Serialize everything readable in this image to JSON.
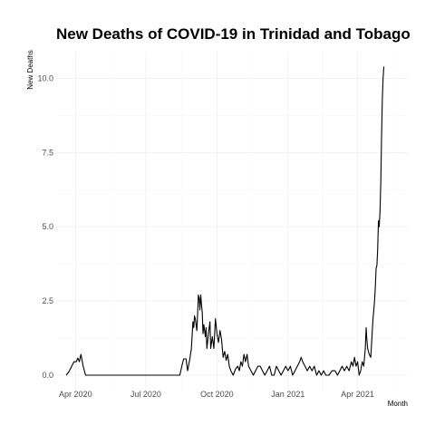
{
  "chart_data": {
    "type": "line",
    "title": "New Deaths of COVID-19 in Trinidad and Tobago",
    "xlabel": "Month",
    "ylabel": "New Deaths",
    "x_ticks": [
      {
        "date": "2020-04-01",
        "label": "Apr 2020"
      },
      {
        "date": "2020-07-01",
        "label": "Jul 2020"
      },
      {
        "date": "2020-10-01",
        "label": "Oct 2020"
      },
      {
        "date": "2021-01-01",
        "label": "Jan 2021"
      },
      {
        "date": "2021-04-01",
        "label": "Apr 2021"
      }
    ],
    "y_ticks": [
      {
        "value": 0,
        "label": "0.0"
      },
      {
        "value": 2.5,
        "label": "2.5"
      },
      {
        "value": 5,
        "label": "5.0"
      },
      {
        "value": 7.5,
        "label": "7.5"
      },
      {
        "value": 10,
        "label": "10.0"
      }
    ],
    "xlim": [
      "2020-03-07",
      "2021-06-05"
    ],
    "ylim": [
      -0.52,
      10.9
    ],
    "grid": true,
    "legend": "none",
    "series": [
      {
        "color": "#000000",
        "points": [
          [
            "2020-03-20",
            0.0
          ],
          [
            "2020-03-24",
            0.14
          ],
          [
            "2020-03-27",
            0.3
          ],
          [
            "2020-03-30",
            0.45
          ],
          [
            "2020-04-02",
            0.45
          ],
          [
            "2020-04-04",
            0.58
          ],
          [
            "2020-04-06",
            0.45
          ],
          [
            "2020-04-08",
            0.7
          ],
          [
            "2020-04-11",
            0.3
          ],
          [
            "2020-04-14",
            0.0
          ],
          [
            "2020-04-20",
            0.0
          ],
          [
            "2020-08-14",
            0.0
          ],
          [
            "2020-08-17",
            0.35
          ],
          [
            "2020-08-19",
            0.55
          ],
          [
            "2020-08-22",
            0.55
          ],
          [
            "2020-08-24",
            0.15
          ],
          [
            "2020-08-27",
            0.55
          ],
          [
            "2020-08-29",
            0.9
          ],
          [
            "2020-08-31",
            1.8
          ],
          [
            "2020-09-01",
            1.6
          ],
          [
            "2020-09-02",
            2.0
          ],
          [
            "2020-09-03",
            1.9
          ],
          [
            "2020-09-05",
            1.5
          ],
          [
            "2020-09-06",
            2.1
          ],
          [
            "2020-09-07",
            2.7
          ],
          [
            "2020-09-08",
            2.6
          ],
          [
            "2020-09-09",
            2.2
          ],
          [
            "2020-09-10",
            2.7
          ],
          [
            "2020-09-11",
            2.4
          ],
          [
            "2020-09-12",
            2.1
          ],
          [
            "2020-09-13",
            1.4
          ],
          [
            "2020-09-14",
            1.7
          ],
          [
            "2020-09-16",
            1.3
          ],
          [
            "2020-09-17",
            1.6
          ],
          [
            "2020-09-18",
            0.9
          ],
          [
            "2020-09-20",
            1.4
          ],
          [
            "2020-09-22",
            1.8
          ],
          [
            "2020-09-23",
            0.9
          ],
          [
            "2020-09-25",
            1.3
          ],
          [
            "2020-09-27",
            0.9
          ],
          [
            "2020-09-29",
            1.9
          ],
          [
            "2020-10-01",
            1.4
          ],
          [
            "2020-10-03",
            1.1
          ],
          [
            "2020-10-05",
            1.5
          ],
          [
            "2020-10-07",
            1.2
          ],
          [
            "2020-10-09",
            0.6
          ],
          [
            "2020-10-11",
            0.8
          ],
          [
            "2020-10-13",
            0.5
          ],
          [
            "2020-10-15",
            0.7
          ],
          [
            "2020-10-17",
            0.3
          ],
          [
            "2020-10-19",
            0.15
          ],
          [
            "2020-10-22",
            0.0
          ],
          [
            "2020-10-25",
            0.2
          ],
          [
            "2020-10-28",
            0.3
          ],
          [
            "2020-10-30",
            0.15
          ],
          [
            "2020-11-01",
            0.45
          ],
          [
            "2020-11-03",
            0.3
          ],
          [
            "2020-11-05",
            0.7
          ],
          [
            "2020-11-07",
            0.45
          ],
          [
            "2020-11-09",
            0.7
          ],
          [
            "2020-11-11",
            0.3
          ],
          [
            "2020-11-14",
            0.15
          ],
          [
            "2020-11-17",
            0.0
          ],
          [
            "2020-11-20",
            0.15
          ],
          [
            "2020-11-23",
            0.3
          ],
          [
            "2020-11-26",
            0.3
          ],
          [
            "2020-11-29",
            0.15
          ],
          [
            "2020-12-02",
            0.0
          ],
          [
            "2020-12-05",
            0.15
          ],
          [
            "2020-12-08",
            0.3
          ],
          [
            "2020-12-11",
            0.0
          ],
          [
            "2020-12-14",
            0.0
          ],
          [
            "2020-12-17",
            0.3
          ],
          [
            "2020-12-20",
            0.15
          ],
          [
            "2020-12-23",
            0.0
          ],
          [
            "2020-12-26",
            0.15
          ],
          [
            "2020-12-29",
            0.3
          ],
          [
            "2021-01-01",
            0.15
          ],
          [
            "2021-01-04",
            0.3
          ],
          [
            "2021-01-07",
            0.0
          ],
          [
            "2021-01-10",
            0.15
          ],
          [
            "2021-01-13",
            0.3
          ],
          [
            "2021-01-16",
            0.45
          ],
          [
            "2021-01-18",
            0.6
          ],
          [
            "2021-01-20",
            0.45
          ],
          [
            "2021-01-23",
            0.3
          ],
          [
            "2021-01-26",
            0.15
          ],
          [
            "2021-01-29",
            0.3
          ],
          [
            "2021-02-01",
            0.15
          ],
          [
            "2021-02-04",
            0.3
          ],
          [
            "2021-02-07",
            0.0
          ],
          [
            "2021-02-10",
            0.15
          ],
          [
            "2021-02-13",
            0.0
          ],
          [
            "2021-02-16",
            0.15
          ],
          [
            "2021-02-19",
            0.0
          ],
          [
            "2021-02-23",
            0.0
          ],
          [
            "2021-02-27",
            0.15
          ],
          [
            "2021-03-03",
            0.15
          ],
          [
            "2021-03-06",
            0.0
          ],
          [
            "2021-03-09",
            0.15
          ],
          [
            "2021-03-12",
            0.3
          ],
          [
            "2021-03-15",
            0.15
          ],
          [
            "2021-03-18",
            0.3
          ],
          [
            "2021-03-21",
            0.15
          ],
          [
            "2021-03-24",
            0.45
          ],
          [
            "2021-03-26",
            0.3
          ],
          [
            "2021-03-28",
            0.6
          ],
          [
            "2021-03-30",
            0.3
          ],
          [
            "2021-04-01",
            0.45
          ],
          [
            "2021-04-03",
            0.0
          ],
          [
            "2021-04-05",
            0.15
          ],
          [
            "2021-04-07",
            0.45
          ],
          [
            "2021-04-09",
            0.3
          ],
          [
            "2021-04-11",
            0.9
          ],
          [
            "2021-04-12",
            1.6
          ],
          [
            "2021-04-13",
            1.2
          ],
          [
            "2021-04-14",
            0.9
          ],
          [
            "2021-04-16",
            0.7
          ],
          [
            "2021-04-18",
            0.6
          ],
          [
            "2021-04-19",
            1.0
          ],
          [
            "2021-04-20",
            1.5
          ],
          [
            "2021-04-21",
            1.9
          ],
          [
            "2021-04-22",
            2.2
          ],
          [
            "2021-04-23",
            2.5
          ],
          [
            "2021-04-24",
            3.0
          ],
          [
            "2021-04-25",
            3.6
          ],
          [
            "2021-04-26",
            3.7
          ],
          [
            "2021-04-27",
            4.2
          ],
          [
            "2021-04-28",
            5.2
          ],
          [
            "2021-04-29",
            5.0
          ],
          [
            "2021-04-30",
            5.5
          ],
          [
            "2021-05-01",
            6.5
          ],
          [
            "2021-05-02",
            8.0
          ],
          [
            "2021-05-03",
            9.3
          ],
          [
            "2021-05-04",
            10.0
          ],
          [
            "2021-05-05",
            10.4
          ]
        ]
      }
    ]
  }
}
